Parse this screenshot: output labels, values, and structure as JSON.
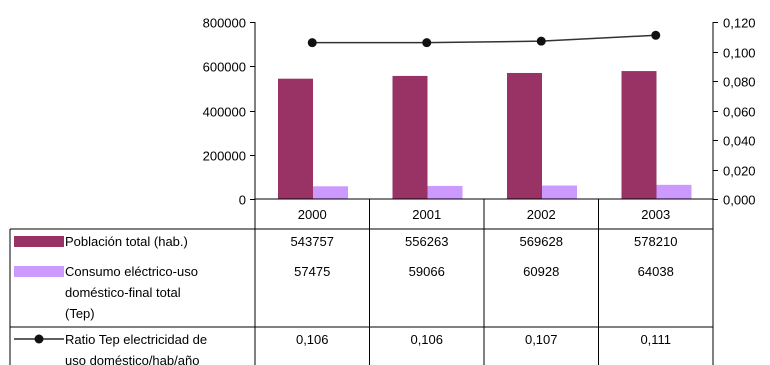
{
  "chart_data": {
    "type": "bar",
    "categories": [
      "2000",
      "2001",
      "2002",
      "2003"
    ],
    "left_axis": {
      "min": 0,
      "max": 800000,
      "ticks": [
        "800000",
        "600000",
        "400000",
        "200000",
        "0"
      ],
      "tick_values": [
        800000,
        600000,
        400000,
        200000,
        0
      ]
    },
    "right_axis": {
      "min": 0,
      "max": 0.12,
      "ticks": [
        "0,120",
        "0,100",
        "0,080",
        "0,060",
        "0,040",
        "0,020",
        "0,000"
      ],
      "tick_values": [
        0.12,
        0.1,
        0.08,
        0.06,
        0.04,
        0.02,
        0.0
      ]
    },
    "grid": false,
    "legend": "data-table",
    "series": [
      {
        "name_lines": [
          "Población total (hab.)"
        ],
        "type": "bar",
        "axis": "left",
        "color": "#993366",
        "values": [
          543757,
          556263,
          569628,
          578210
        ],
        "labels": [
          "543757",
          "556263",
          "569628",
          "578210"
        ]
      },
      {
        "name_lines": [
          "Consumo eléctrico-uso",
          "doméstico-final total",
          "(Tep)"
        ],
        "type": "bar",
        "axis": "left",
        "color": "#cc99ff",
        "values": [
          57475,
          59066,
          60928,
          64038
        ],
        "labels": [
          "57475",
          "59066",
          "60928",
          "64038"
        ]
      },
      {
        "name_lines": [
          "Ratio Tep electricidad de",
          "uso doméstico/hab/año"
        ],
        "type": "line",
        "axis": "right",
        "color": "#333333",
        "values": [
          0.106,
          0.106,
          0.107,
          0.111
        ],
        "labels": [
          "0,106",
          "0,106",
          "0,107",
          "0,111"
        ]
      }
    ]
  }
}
